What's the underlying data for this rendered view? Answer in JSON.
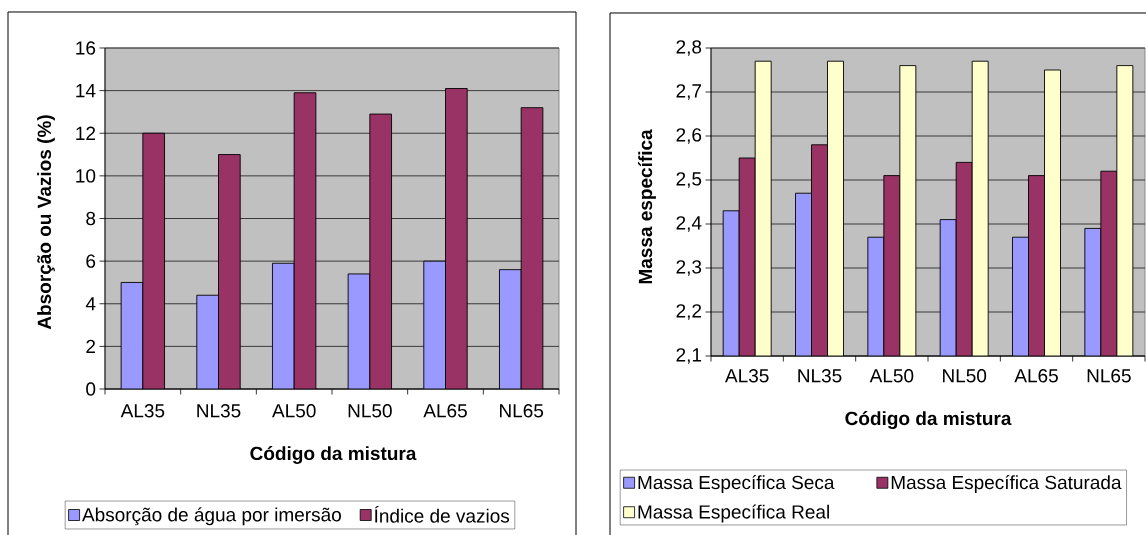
{
  "chart_data": [
    {
      "type": "bar",
      "xlabel": "Código da mistura",
      "ylabel": "Absorção ou Vazios (%)",
      "categories": [
        "AL35",
        "NL35",
        "AL50",
        "NL50",
        "AL65",
        "NL65"
      ],
      "series": [
        {
          "name": "Absorção de água por imersão",
          "color": "#9999ff",
          "values": [
            5.0,
            4.4,
            5.9,
            5.4,
            6.0,
            5.6
          ]
        },
        {
          "name": "Índice de vazios",
          "color": "#993366",
          "values": [
            12.0,
            11.0,
            13.9,
            12.9,
            14.1,
            13.2
          ]
        }
      ],
      "ylim": [
        0,
        16
      ],
      "yticks": [
        0,
        2,
        4,
        6,
        8,
        10,
        12,
        14,
        16
      ],
      "grid": "y",
      "legend": "bottom"
    },
    {
      "type": "bar",
      "xlabel": "Código da mistura",
      "ylabel": "Massa específica",
      "categories": [
        "AL35",
        "NL35",
        "AL50",
        "NL50",
        "AL65",
        "NL65"
      ],
      "series": [
        {
          "name": "Massa Específica Seca",
          "color": "#9999ff",
          "values": [
            2.43,
            2.47,
            2.37,
            2.41,
            2.37,
            2.39
          ]
        },
        {
          "name": "Massa Específica Saturada",
          "color": "#993366",
          "values": [
            2.55,
            2.58,
            2.51,
            2.54,
            2.51,
            2.52
          ]
        },
        {
          "name": "Massa Específica Real",
          "color": "#ffffcc",
          "values": [
            2.77,
            2.77,
            2.76,
            2.77,
            2.75,
            2.76
          ]
        }
      ],
      "ylim": [
        2.1,
        2.8
      ],
      "yticks": [
        {
          "value": 2.1,
          "label": "2,1"
        },
        {
          "value": 2.2,
          "label": "2,2"
        },
        {
          "value": 2.3,
          "label": "2,3"
        },
        {
          "value": 2.4,
          "label": "2,4"
        },
        {
          "value": 2.5,
          "label": "2,5"
        },
        {
          "value": 2.6,
          "label": "2,6"
        },
        {
          "value": 2.7,
          "label": "2,7"
        },
        {
          "value": 2.8,
          "label": "2,8"
        }
      ],
      "grid": "y",
      "legend": "bottom"
    }
  ]
}
